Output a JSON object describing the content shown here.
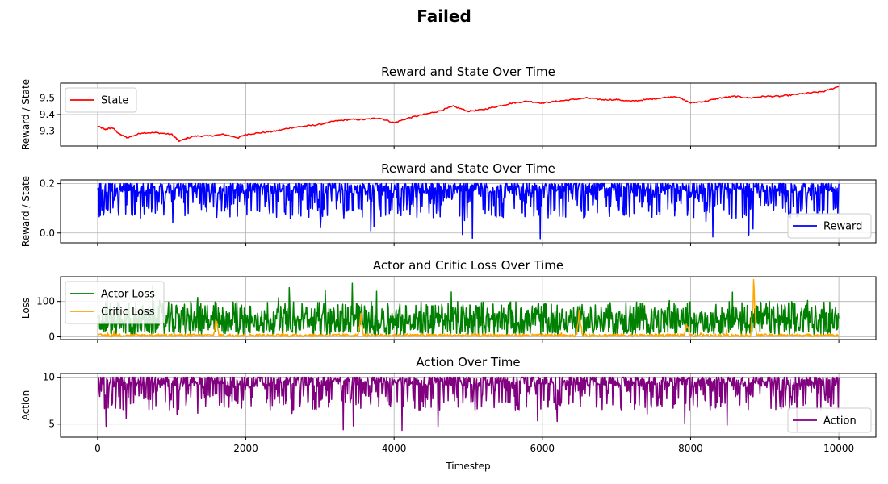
{
  "figure": {
    "title": "Failed"
  },
  "chart_data": [
    {
      "type": "line",
      "title": "Reward and State Over Time",
      "xlabel": "",
      "ylabel": "Reward / State",
      "xlim": [
        -500,
        10500
      ],
      "ylim": [
        9.21,
        9.59
      ],
      "xticks": [
        0,
        2000,
        4000,
        6000,
        8000,
        10000
      ],
      "yticks": [
        9.3,
        9.4,
        9.5
      ],
      "ytick_labels": [
        "9.3",
        "9.4",
        "9.5"
      ],
      "x_ticklabels_visible": false,
      "grid": true,
      "legend": "upper-left",
      "series": [
        {
          "name": "State",
          "color": "#ff0000",
          "x": [
            0,
            100,
            200,
            300,
            400,
            600,
            800,
            1000,
            1100,
            1300,
            1500,
            1700,
            1900,
            2000,
            2200,
            2400,
            2600,
            2800,
            3000,
            3200,
            3400,
            3600,
            3800,
            4000,
            4200,
            4400,
            4600,
            4800,
            5000,
            5200,
            5400,
            5600,
            5800,
            6000,
            6200,
            6400,
            6600,
            6800,
            7000,
            7200,
            7400,
            7600,
            7800,
            8000,
            8200,
            8400,
            8600,
            8800,
            9000,
            9200,
            9400,
            9600,
            9800,
            10000
          ],
          "y": [
            9.33,
            9.31,
            9.32,
            9.28,
            9.26,
            9.29,
            9.29,
            9.28,
            9.24,
            9.27,
            9.27,
            9.28,
            9.26,
            9.28,
            9.29,
            9.3,
            9.32,
            9.33,
            9.34,
            9.36,
            9.37,
            9.37,
            9.38,
            9.35,
            9.38,
            9.4,
            9.42,
            9.45,
            9.42,
            9.43,
            9.45,
            9.47,
            9.48,
            9.47,
            9.48,
            9.49,
            9.5,
            9.49,
            9.49,
            9.48,
            9.49,
            9.5,
            9.51,
            9.47,
            9.48,
            9.5,
            9.51,
            9.5,
            9.51,
            9.51,
            9.52,
            9.53,
            9.54,
            9.57
          ]
        }
      ]
    },
    {
      "type": "line",
      "title": "Reward and State Over Time",
      "xlabel": "",
      "ylabel": "Reward / State",
      "xlim": [
        -500,
        10500
      ],
      "ylim": [
        -0.04,
        0.215
      ],
      "xticks": [
        0,
        2000,
        4000,
        6000,
        8000,
        10000
      ],
      "yticks": [
        0.0,
        0.2
      ],
      "ytick_labels": [
        "0.0",
        "0.2"
      ],
      "x_ticklabels_visible": false,
      "grid": true,
      "legend": "lower-right",
      "series": [
        {
          "name": "Reward",
          "color": "#0000ff",
          "mode": "noisy_band",
          "x_range": [
            0,
            10000
          ],
          "upper": 0.2,
          "band": [
            0.16,
            0.2
          ],
          "typical_min": 0.06,
          "extreme_min": -0.03
        }
      ]
    },
    {
      "type": "line",
      "title": "Actor and Critic Loss Over Time",
      "xlabel": "",
      "ylabel": "Loss",
      "xlim": [
        -500,
        10500
      ],
      "ylim": [
        -8,
        170
      ],
      "xticks": [
        0,
        2000,
        4000,
        6000,
        8000,
        10000
      ],
      "yticks": [
        0,
        100
      ],
      "ytick_labels": [
        "0",
        "100"
      ],
      "x_ticklabels_visible": false,
      "grid": true,
      "legend": "upper-left",
      "series": [
        {
          "name": "Actor Loss",
          "color": "#008000",
          "mode": "noisy_band",
          "x_range": [
            0,
            10000
          ],
          "band": [
            5,
            70
          ],
          "typical_max": 100,
          "extreme_max": 155
        },
        {
          "name": "Critic Loss",
          "color": "#ffa500",
          "mode": "spikes",
          "x_range": [
            0,
            10000
          ],
          "baseline": [
            0,
            8
          ],
          "spike_x": [
            1600,
            3550,
            6500,
            7950,
            8850
          ],
          "spike_y": [
            60,
            75,
            95,
            45,
            165
          ]
        }
      ]
    },
    {
      "type": "line",
      "title": "Action Over Time",
      "xlabel": "Timestep",
      "ylabel": "Action",
      "xlim": [
        -500,
        10500
      ],
      "ylim": [
        3.6,
        10.4
      ],
      "xticks": [
        0,
        2000,
        4000,
        6000,
        8000,
        10000
      ],
      "xtick_labels": [
        "0",
        "2000",
        "4000",
        "6000",
        "8000",
        "10000"
      ],
      "yticks": [
        5,
        10
      ],
      "ytick_labels": [
        "5",
        "10"
      ],
      "x_ticklabels_visible": true,
      "grid": true,
      "legend": "lower-right",
      "series": [
        {
          "name": "Action",
          "color": "#800080",
          "mode": "noisy_band",
          "x_range": [
            0,
            10000
          ],
          "upper": 10,
          "band": [
            9.0,
            10
          ],
          "typical_min": 6.5,
          "extreme_min": 4.0
        }
      ]
    }
  ]
}
